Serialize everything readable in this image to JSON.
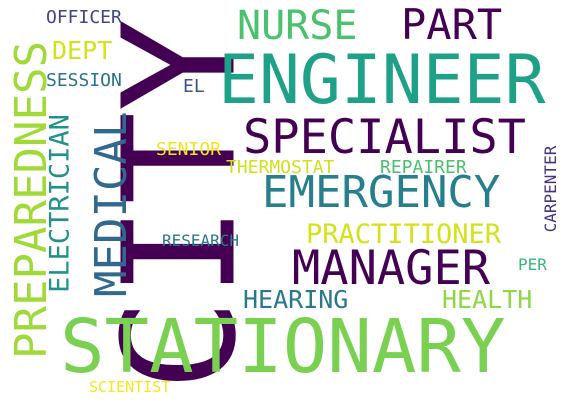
{
  "words": [
    {
      "text": "CITY",
      "color": "#440154"
    },
    {
      "text": "STATIONARY",
      "color": "#7ad151"
    },
    {
      "text": "ENGINEER",
      "color": "#1fa187"
    },
    {
      "text": "SPECIALIST",
      "color": "#440154"
    },
    {
      "text": "EMERGENCY",
      "color": "#277f8e"
    },
    {
      "text": "MANAGER",
      "color": "#440154"
    },
    {
      "text": "PREPAREDNESS",
      "color": "#a0da39"
    },
    {
      "text": "MEDICAL",
      "color": "#31688e"
    },
    {
      "text": "NURSE",
      "color": "#4ac16d"
    },
    {
      "text": "PART",
      "color": "#440154"
    },
    {
      "text": "PRACTITIONER",
      "color": "#d5e21a"
    },
    {
      "text": "ELECTRICIAN",
      "color": "#21918c"
    },
    {
      "text": "HEARING",
      "color": "#2a788e"
    },
    {
      "text": "HEALTH",
      "color": "#8fd744"
    },
    {
      "text": "THERMOSTAT",
      "color": "#d0e11c"
    },
    {
      "text": "REPAIRER",
      "color": "#4ac16d"
    },
    {
      "text": "OFFICER",
      "color": "#414487"
    },
    {
      "text": "DEPT",
      "color": "#d2e21b"
    },
    {
      "text": "SESSION",
      "color": "#2c728e"
    },
    {
      "text": "EL",
      "color": "#3b528b"
    },
    {
      "text": "SENIOR",
      "color": "#f1e51d"
    },
    {
      "text": "RESEARCH",
      "color": "#2a788e"
    },
    {
      "text": "CARPENTER",
      "color": "#46327e"
    },
    {
      "text": "PER",
      "color": "#35b779"
    },
    {
      "text": "SCIENTIST",
      "color": "#f6e620"
    }
  ]
}
